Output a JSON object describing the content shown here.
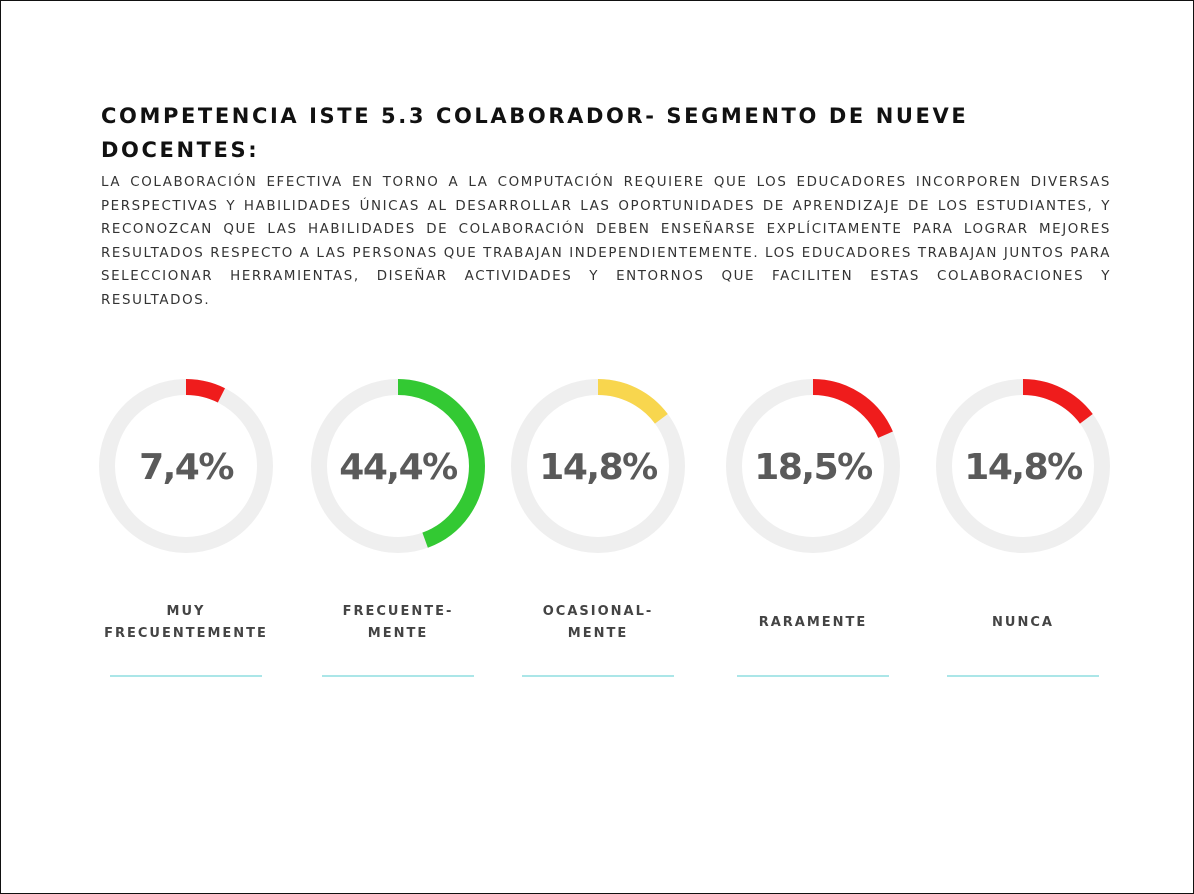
{
  "chart_data": {
    "type": "donut",
    "title": "COMPETENCIA ISTE 5.3 COLABORADOR- SEGMENTO DE NUEVE DOCENTES:",
    "subtitle": "LA COLABORACIÓN EFECTIVA EN TORNO A LA COMPUTACIÓN REQUIERE QUE LOS EDUCADORES INCORPOREN DIVERSAS PERSPECTIVAS Y HABILIDADES ÚNICAS AL DESARROLLAR LAS OPORTUNIDADES DE APRENDIZAJE DE LOS ESTUDIANTES, Y RECONOZCAN QUE LAS HABILIDADES DE COLABORACIÓN DEBEN ENSEÑARSE EXPLÍCITAMENTE PARA LOGRAR MEJORES RESULTADOS RESPECTO A LAS PERSONAS QUE TRABAJAN INDEPENDIENTEMENTE. LOS EDUCADORES TRABAJAN JUNTOS PARA SELECCIONAR HERRAMIENTAS, DISEÑAR ACTIVIDADES Y ENTORNOS QUE FACILITEN ESTAS COLABORACIONES Y RESULTADOS.",
    "categories": [
      "MUY\nFRECUENTEMENTE",
      "FRECUENTE-\nMENTE",
      "OCASIONAL-\nMENTE",
      "RARAMENTE",
      "NUNCA"
    ],
    "values": [
      7.4,
      44.4,
      14.8,
      18.5,
      14.8
    ],
    "value_labels": [
      "7,4%",
      "44,4%",
      "14,8%",
      "18,5%",
      "14,8%"
    ],
    "colors": [
      "#ef1c1c",
      "#33c933",
      "#f8d64e",
      "#ef1c1c",
      "#ef1c1c"
    ]
  }
}
